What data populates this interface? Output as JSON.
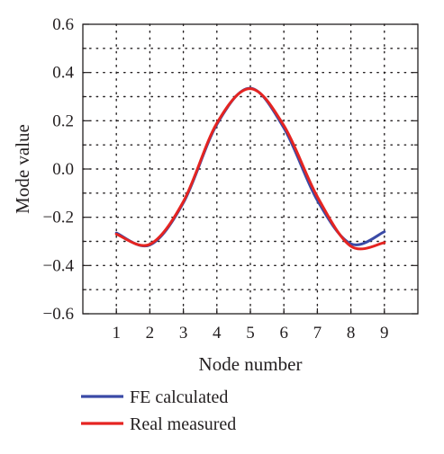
{
  "chart_data": {
    "type": "line",
    "xlabel": "Node number",
    "ylabel": "Mode value",
    "xlim": [
      0,
      10
    ],
    "ylim": [
      -0.6,
      0.6
    ],
    "xticks": [
      1,
      2,
      3,
      4,
      5,
      6,
      7,
      8,
      9
    ],
    "xtick_labels": [
      "1",
      "2",
      "3",
      "4",
      "5",
      "6",
      "7",
      "8",
      "9"
    ],
    "yticks": [
      -0.6,
      -0.5,
      -0.4,
      -0.3,
      -0.2,
      -0.1,
      0.0,
      0.1,
      0.2,
      0.3,
      0.4,
      0.5,
      0.6
    ],
    "ytick_labels": [
      "−0.6",
      "",
      "−0.4",
      "",
      "−0.2",
      "",
      "0.0",
      "",
      "0.2",
      "",
      "0.4",
      "",
      "0.6"
    ],
    "grid": true,
    "grid_style": "dotted",
    "legend_position": "below plot",
    "series": [
      {
        "name": "FE calculated",
        "color": "#3a4aa6",
        "x": [
          1,
          2,
          3,
          4,
          5,
          6,
          7,
          8,
          9
        ],
        "values": [
          -0.265,
          -0.315,
          -0.14,
          0.185,
          0.335,
          0.17,
          -0.13,
          -0.31,
          -0.26
        ]
      },
      {
        "name": "Real measured",
        "color": "#e52421",
        "x": [
          1,
          2,
          3,
          4,
          5,
          6,
          7,
          8,
          9
        ],
        "values": [
          -0.27,
          -0.312,
          -0.135,
          0.19,
          0.333,
          0.18,
          -0.115,
          -0.32,
          -0.305
        ]
      }
    ]
  }
}
